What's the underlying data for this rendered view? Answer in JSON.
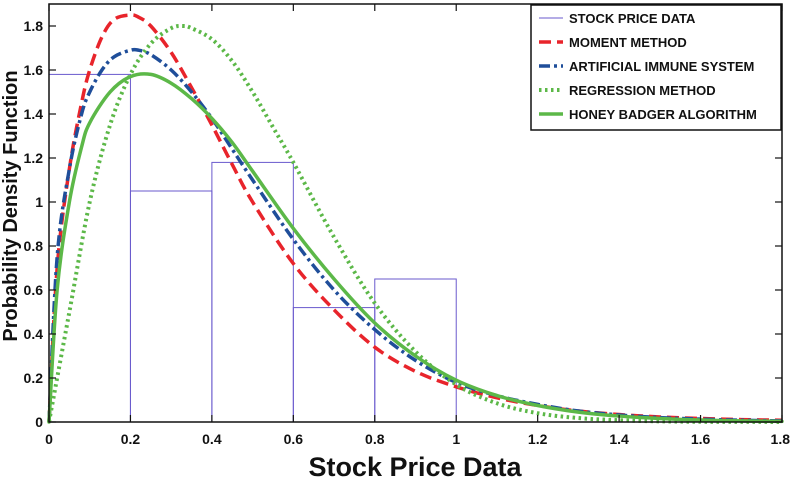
{
  "chart_data": {
    "type": "line",
    "title": "",
    "xlabel": "Stock Price Data",
    "ylabel": "Probability Density Function",
    "xlim": [
      0,
      1.8
    ],
    "ylim": [
      0,
      1.9
    ],
    "x_ticks": [
      "0",
      "0.2",
      "0.4",
      "0.6",
      "0.8",
      "1",
      "1.2",
      "1.4",
      "1.6",
      "1.8"
    ],
    "y_ticks": [
      "0",
      "0.2",
      "0.4",
      "0.6",
      "0.8",
      "1",
      "1.2",
      "1.4",
      "1.6",
      "1.8"
    ],
    "grid": false,
    "legend_position": "top-right",
    "histogram": {
      "name": "STOCK PRICE DATA",
      "color": "#6a5acd",
      "bins": [
        {
          "x0": 0.0,
          "x1": 0.2,
          "value": 1.58
        },
        {
          "x0": 0.2,
          "x1": 0.4,
          "value": 1.05
        },
        {
          "x0": 0.4,
          "x1": 0.6,
          "value": 1.18
        },
        {
          "x0": 0.6,
          "x1": 0.8,
          "value": 0.52
        },
        {
          "x0": 0.8,
          "x1": 1.0,
          "value": 0.65
        }
      ]
    },
    "series": [
      {
        "name": "MOMENT METHOD",
        "color": "#e8242b",
        "style": "dashed",
        "x": [
          0,
          0.02,
          0.05,
          0.08,
          0.1,
          0.13,
          0.16,
          0.2,
          0.22,
          0.25,
          0.3,
          0.35,
          0.4,
          0.45,
          0.5,
          0.6,
          0.7,
          0.8,
          0.9,
          1.0,
          1.1,
          1.2,
          1.3,
          1.4,
          1.5,
          1.6,
          1.7,
          1.8
        ],
        "values": [
          0,
          0.7,
          1.15,
          1.45,
          1.6,
          1.75,
          1.83,
          1.85,
          1.84,
          1.8,
          1.68,
          1.52,
          1.35,
          1.17,
          1.0,
          0.72,
          0.51,
          0.34,
          0.23,
          0.16,
          0.11,
          0.075,
          0.05,
          0.034,
          0.023,
          0.016,
          0.011,
          0.008
        ]
      },
      {
        "name": "ARTIFICIAL IMMUNE SYSTEM",
        "color": "#1f4e9a",
        "style": "dashdot",
        "x": [
          0,
          0.02,
          0.05,
          0.08,
          0.1,
          0.13,
          0.16,
          0.2,
          0.22,
          0.25,
          0.3,
          0.35,
          0.4,
          0.45,
          0.5,
          0.6,
          0.7,
          0.8,
          0.9,
          1.0,
          1.1,
          1.2,
          1.3,
          1.4,
          1.5,
          1.6,
          1.7,
          1.8
        ],
        "values": [
          0,
          0.75,
          1.15,
          1.4,
          1.5,
          1.6,
          1.66,
          1.69,
          1.69,
          1.67,
          1.6,
          1.5,
          1.38,
          1.24,
          1.1,
          0.83,
          0.6,
          0.42,
          0.28,
          0.18,
          0.12,
          0.08,
          0.05,
          0.032,
          0.02,
          0.013,
          0.008,
          0.005
        ]
      },
      {
        "name": "REGRESSION METHOD",
        "color": "#5cb848",
        "style": "dotted",
        "x": [
          0,
          0.05,
          0.1,
          0.15,
          0.2,
          0.25,
          0.3,
          0.33,
          0.35,
          0.4,
          0.45,
          0.5,
          0.55,
          0.6,
          0.7,
          0.8,
          0.9,
          1.0,
          1.1,
          1.2,
          1.3,
          1.4,
          1.5,
          1.6,
          1.7,
          1.8
        ],
        "values": [
          0,
          0.5,
          1.0,
          1.35,
          1.58,
          1.72,
          1.79,
          1.8,
          1.79,
          1.74,
          1.64,
          1.5,
          1.34,
          1.18,
          0.84,
          0.54,
          0.32,
          0.17,
          0.085,
          0.04,
          0.018,
          0.008,
          0.003,
          0.001,
          0.0005,
          0.0002
        ]
      },
      {
        "name": "HONEY BADGER ALGORITHM",
        "color": "#5cb848",
        "style": "solid",
        "x": [
          0,
          0.02,
          0.05,
          0.08,
          0.1,
          0.15,
          0.2,
          0.25,
          0.3,
          0.35,
          0.4,
          0.45,
          0.5,
          0.6,
          0.7,
          0.8,
          0.9,
          1.0,
          1.1,
          1.2,
          1.3,
          1.4,
          1.5,
          1.6,
          1.7,
          1.8
        ],
        "values": [
          0,
          0.6,
          1.0,
          1.25,
          1.36,
          1.5,
          1.57,
          1.58,
          1.54,
          1.47,
          1.38,
          1.27,
          1.14,
          0.88,
          0.65,
          0.45,
          0.3,
          0.19,
          0.12,
          0.075,
          0.045,
          0.027,
          0.016,
          0.009,
          0.005,
          0.003
        ]
      }
    ]
  }
}
